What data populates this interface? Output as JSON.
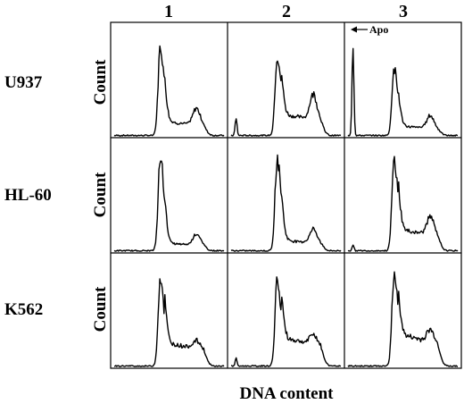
{
  "chart_data": {
    "type": "histogram-grid",
    "columns": [
      "1",
      "2",
      "3"
    ],
    "rows": [
      "U937",
      "HL-60",
      "K562"
    ],
    "ylabel": "Count",
    "xlabel": "DNA content",
    "annotation": "Apo",
    "panels": [
      [
        {
          "apo": 0,
          "g1": 0.85,
          "plateau": 0.13,
          "g2": 0.16
        },
        {
          "apo": 0.17,
          "g1": 0.77,
          "plateau": 0.2,
          "g2": 0.24
        },
        {
          "apo": 0.9,
          "g1": 0.63,
          "plateau": 0.09,
          "g2": 0.12
        }
      ],
      [
        {
          "apo": 0,
          "g1": 0.88,
          "plateau": 0.07,
          "g2": 0.11
        },
        {
          "apo": 0,
          "g1": 0.88,
          "plateau": 0.1,
          "g2": 0.13
        },
        {
          "apo": 0.06,
          "g1": 0.86,
          "plateau": 0.2,
          "g2": 0.17
        }
      ],
      [
        {
          "apo": 0,
          "g1": 0.85,
          "plateau": 0.22,
          "g2": 0.07
        },
        {
          "apo": 0.07,
          "g1": 0.82,
          "plateau": 0.27,
          "g2": 0.09
        },
        {
          "apo": 0,
          "g1": 0.88,
          "plateau": 0.3,
          "g2": 0.11
        }
      ]
    ]
  }
}
